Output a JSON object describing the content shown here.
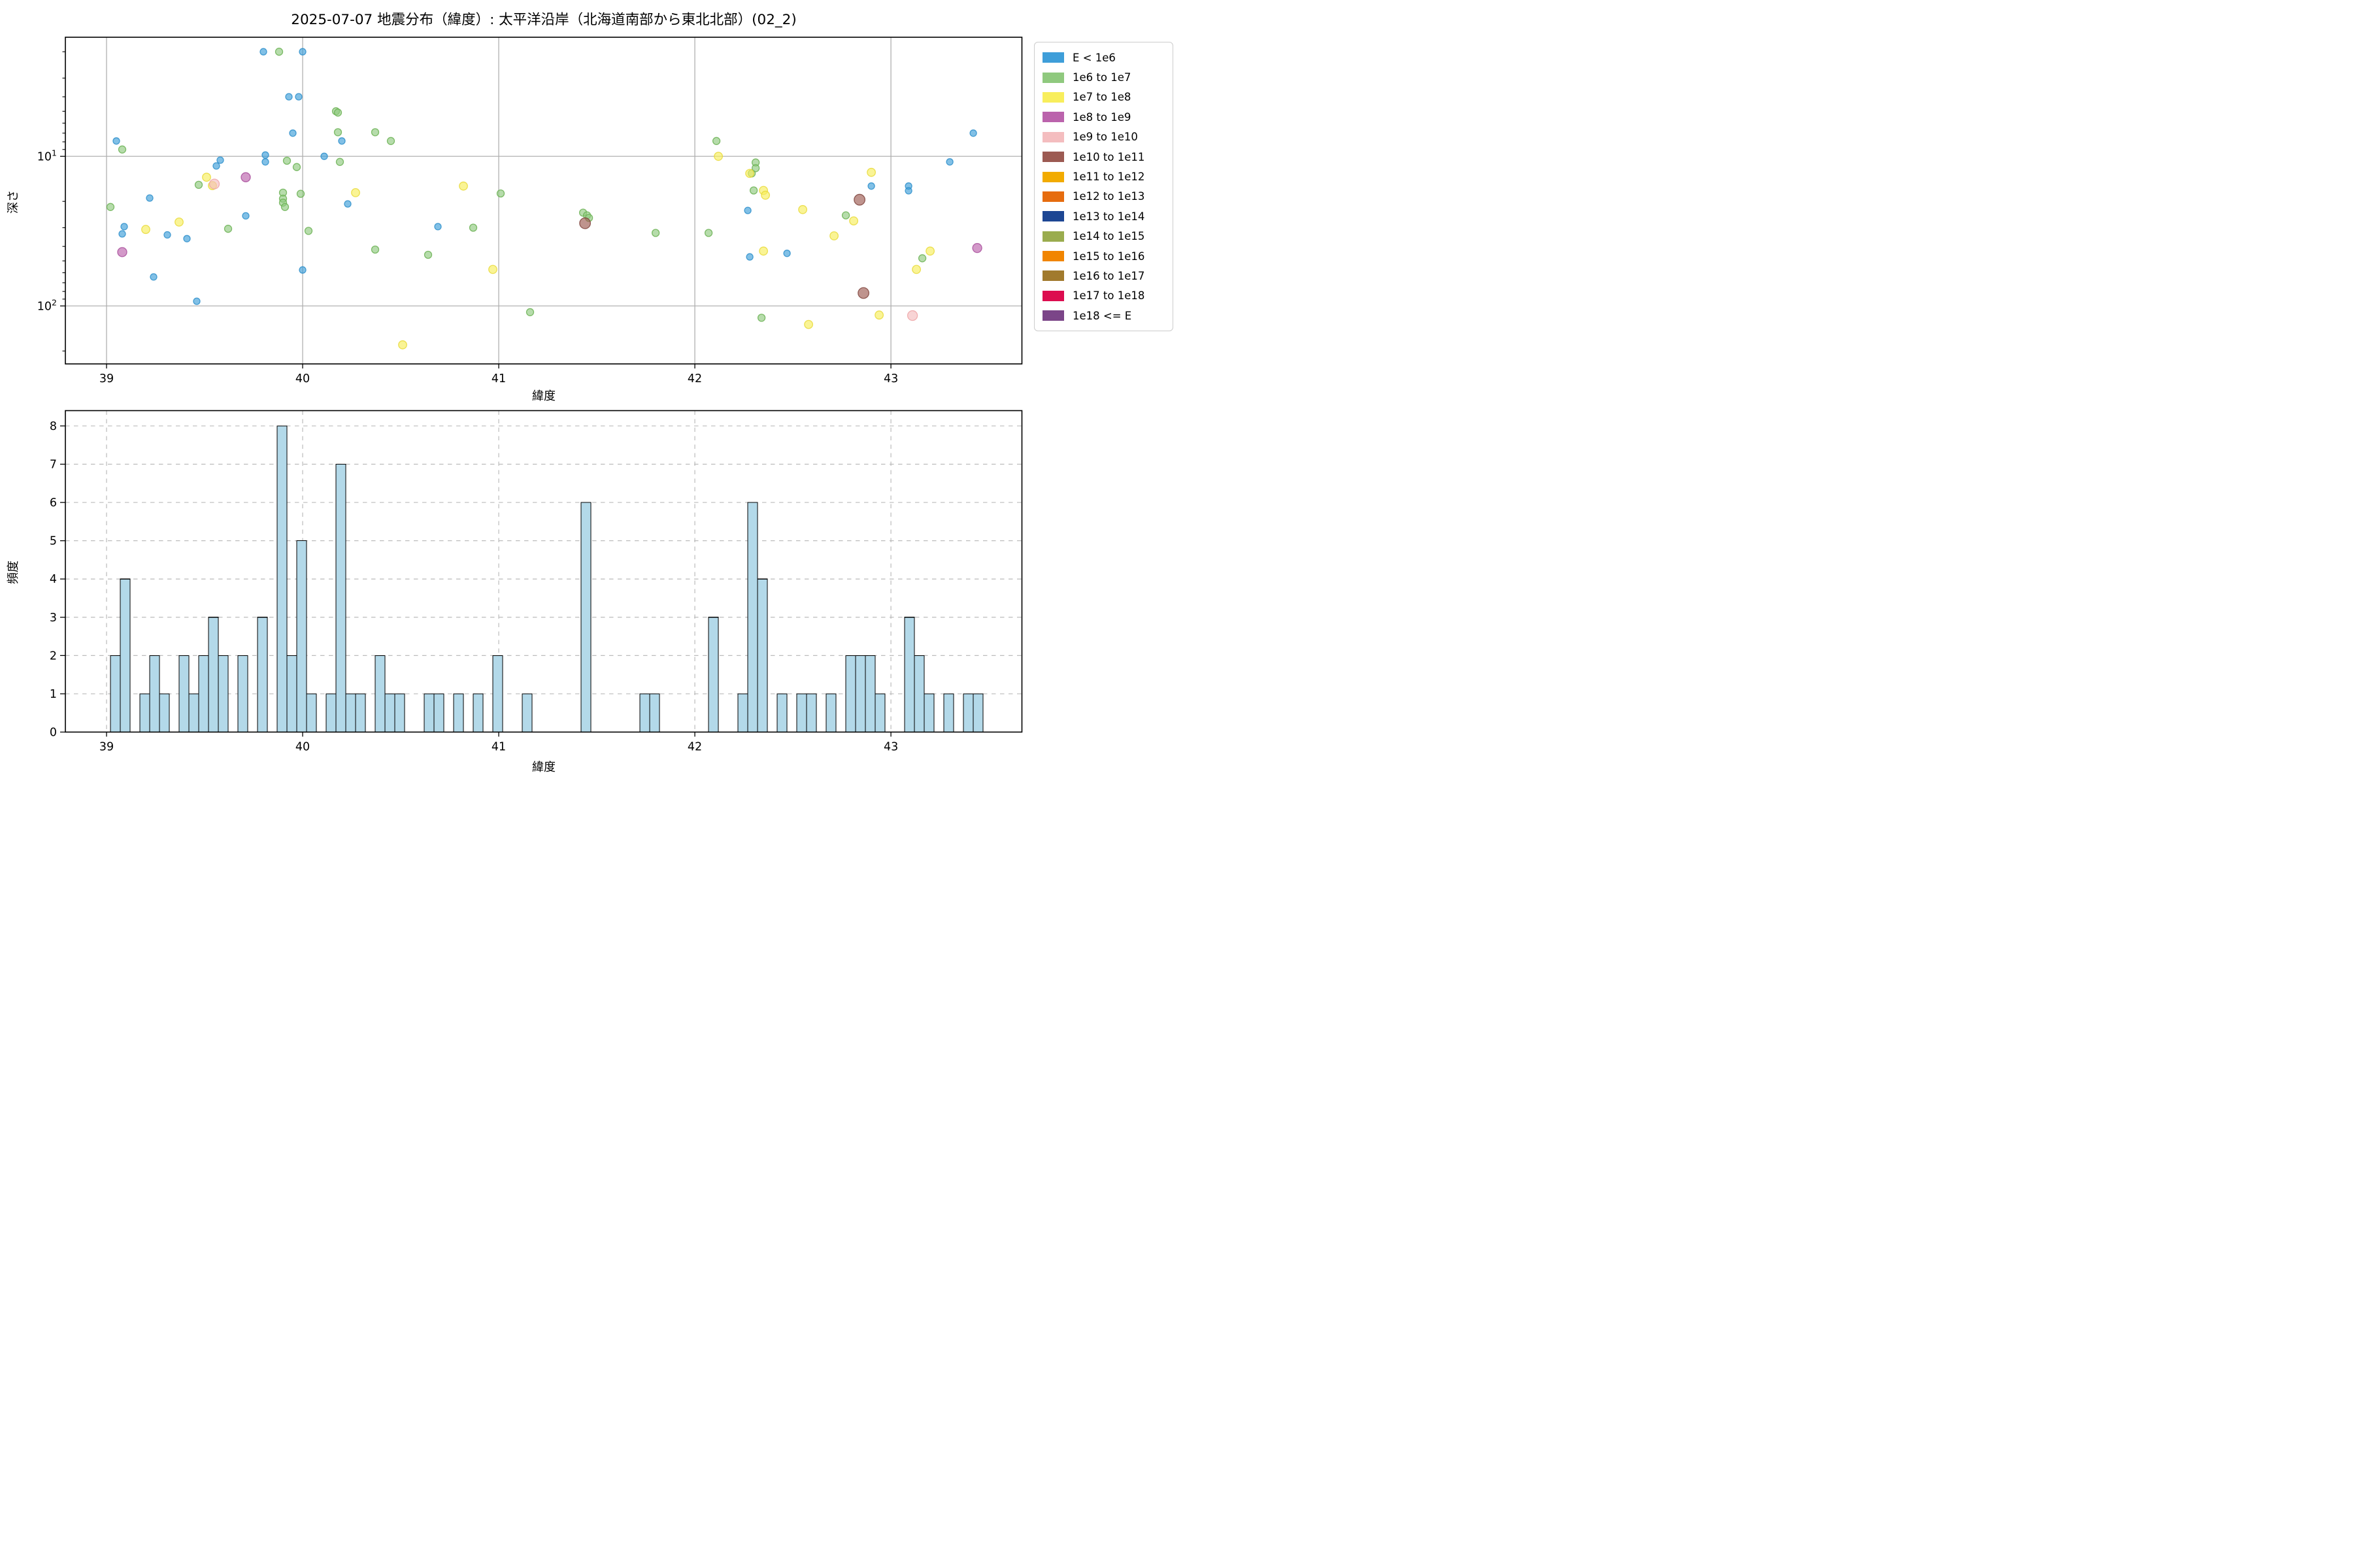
{
  "chart_data": [
    {
      "type": "scatter",
      "title": "2025-07-07 地震分布（緯度）: 太平洋沿岸（北海道南部から東北北部）(02_2)",
      "xlabel": "緯度",
      "ylabel": "深さ",
      "x_range": [
        38.79,
        43.668
      ],
      "x_ticks": [
        39,
        40,
        41,
        42,
        43
      ],
      "y_scale": "log",
      "y_inverted": true,
      "y_range_depth": [
        1.6,
        244
      ],
      "y_major_ticks": [
        10,
        100
      ],
      "y_minor_ticks": [
        2,
        3,
        4,
        5,
        6,
        7,
        8,
        9,
        20,
        30,
        40,
        50,
        60,
        70,
        80,
        90,
        200
      ],
      "grid": "solid",
      "grid_color": "#b0b0b0",
      "series": [
        {
          "name": "E < 1e6",
          "color": "#3E9ED9",
          "edge": "#2E8FCB",
          "size": 10,
          "points": [
            [
              39.05,
              7.9
            ],
            [
              39.08,
              33
            ],
            [
              39.09,
              29.5
            ],
            [
              39.22,
              19
            ],
            [
              39.24,
              64
            ],
            [
              39.31,
              33.5
            ],
            [
              39.41,
              35.5
            ],
            [
              39.46,
              93
            ],
            [
              39.56,
              11.6
            ],
            [
              39.58,
              10.6
            ],
            [
              39.71,
              25
            ],
            [
              39.8,
              2.0
            ],
            [
              39.81,
              9.8
            ],
            [
              39.81,
              10.9
            ],
            [
              39.93,
              4.0
            ],
            [
              39.95,
              7.0
            ],
            [
              39.98,
              4.0
            ],
            [
              40.0,
              2.0
            ],
            [
              40.0,
              57.5
            ],
            [
              40.11,
              10.0
            ],
            [
              40.2,
              7.9
            ],
            [
              40.23,
              20.8
            ],
            [
              40.69,
              29.5
            ],
            [
              42.27,
              23.0
            ],
            [
              42.28,
              47
            ],
            [
              42.47,
              44.5
            ],
            [
              42.9,
              15.8
            ],
            [
              43.09,
              15.8
            ],
            [
              43.09,
              17.0
            ],
            [
              43.3,
              10.9
            ],
            [
              43.42,
              7.0
            ]
          ]
        },
        {
          "name": "1e6 to 1e7",
          "color": "#8FC97E",
          "edge": "#6BB254",
          "size": 11,
          "points": [
            [
              39.02,
              21.8
            ],
            [
              39.08,
              9.0
            ],
            [
              39.47,
              15.5
            ],
            [
              39.62,
              30.5
            ],
            [
              39.88,
              2.0
            ],
            [
              39.9,
              17.5
            ],
            [
              39.9,
              19.2
            ],
            [
              39.9,
              20.4
            ],
            [
              39.91,
              21.8
            ],
            [
              39.92,
              10.7
            ],
            [
              39.97,
              11.8
            ],
            [
              39.99,
              17.8
            ],
            [
              40.03,
              31.5
            ],
            [
              40.17,
              5.0
            ],
            [
              40.18,
              5.1
            ],
            [
              40.18,
              6.9
            ],
            [
              40.19,
              10.9
            ],
            [
              40.37,
              6.9
            ],
            [
              40.37,
              42
            ],
            [
              40.45,
              7.9
            ],
            [
              40.64,
              45.5
            ],
            [
              40.87,
              30
            ],
            [
              41.01,
              17.7
            ],
            [
              41.16,
              110
            ],
            [
              41.43,
              23.8
            ],
            [
              41.45,
              24.8
            ],
            [
              41.46,
              25.8
            ],
            [
              41.8,
              32.5
            ],
            [
              42.07,
              32.5
            ],
            [
              42.11,
              7.9
            ],
            [
              42.29,
              13.0
            ],
            [
              42.3,
              16.9
            ],
            [
              42.31,
              11.0
            ],
            [
              42.31,
              12.0
            ],
            [
              42.34,
              120
            ],
            [
              42.77,
              24.8
            ],
            [
              43.16,
              48
            ]
          ]
        },
        {
          "name": "1e7 to 1e8",
          "color": "#F8EE5C",
          "edge": "#E8D93A",
          "size": 12.5,
          "points": [
            [
              39.2,
              30.8
            ],
            [
              39.37,
              27.5
            ],
            [
              39.51,
              13.8
            ],
            [
              39.54,
              15.7
            ],
            [
              40.27,
              17.5
            ],
            [
              40.51,
              182
            ],
            [
              40.82,
              15.8
            ],
            [
              40.97,
              57
            ],
            [
              42.12,
              10.0
            ],
            [
              42.28,
              13.0
            ],
            [
              42.35,
              16.9
            ],
            [
              42.36,
              18.2
            ],
            [
              42.35,
              43
            ],
            [
              42.55,
              22.7
            ],
            [
              42.58,
              133
            ],
            [
              42.71,
              34
            ],
            [
              42.81,
              27
            ],
            [
              42.9,
              12.8
            ],
            [
              42.94,
              115
            ],
            [
              43.13,
              57
            ],
            [
              43.2,
              43
            ]
          ]
        },
        {
          "name": "1e8 to 1e9",
          "color": "#BB63AC",
          "edge": "#A84D9B",
          "size": 14,
          "points": [
            [
              39.08,
              43.7
            ],
            [
              39.71,
              13.8
            ],
            [
              43.44,
              41
            ]
          ]
        },
        {
          "name": "1e9 to 1e10",
          "color": "#F4BDBF",
          "edge": "#EDA3A6",
          "size": 15,
          "points": [
            [
              39.55,
              15.3
            ],
            [
              43.11,
              116
            ]
          ]
        },
        {
          "name": "1e10 to 1e11",
          "color": "#9C5A52",
          "edge": "#7F443D",
          "size": 16.5,
          "points": [
            [
              41.44,
              28
            ],
            [
              42.84,
              19.5
            ],
            [
              42.86,
              82
            ]
          ]
        },
        {
          "name": "1e11 to 1e12",
          "color": "#F2AB00",
          "edge": "#D99900",
          "size": 13,
          "points": []
        },
        {
          "name": "1e12 to 1e13",
          "color": "#E66C0F",
          "edge": "#C85A08",
          "size": 13,
          "points": []
        },
        {
          "name": "1e13 to 1e14",
          "color": "#1D4693",
          "edge": "#14357A",
          "size": 13,
          "points": []
        },
        {
          "name": "1e14 to 1e15",
          "color": "#9AAC4E",
          "edge": "#80913C",
          "size": 13,
          "points": []
        },
        {
          "name": "1e15 to 1e16",
          "color": "#F18500",
          "edge": "#D37300",
          "size": 13,
          "points": []
        },
        {
          "name": "1e16 to 1e17",
          "color": "#A17A2D",
          "edge": "#876422",
          "size": 13,
          "points": []
        },
        {
          "name": "1e17 to 1e18",
          "color": "#DC0D4F",
          "edge": "#B80A41",
          "size": 13,
          "points": []
        },
        {
          "name": "1e18 <= E",
          "color": "#7B4588",
          "edge": "#643471",
          "size": 13,
          "points": []
        }
      ]
    },
    {
      "type": "bar",
      "xlabel": "緯度",
      "ylabel": "頻度",
      "x_range": [
        38.79,
        43.668
      ],
      "x_ticks": [
        39,
        40,
        41,
        42,
        43
      ],
      "y_ticks": [
        0,
        1,
        2,
        3,
        4,
        5,
        6,
        7,
        8
      ],
      "y_max": 8.4,
      "grid": "dashed",
      "grid_color": "#bbbbbb",
      "bar_color": "#B3D9E9",
      "bar_edge": "#000000",
      "bin_width": 0.05,
      "bins": [
        {
          "left": 39.02,
          "count": 2
        },
        {
          "left": 39.07,
          "count": 4
        },
        {
          "left": 39.17,
          "count": 1
        },
        {
          "left": 39.22,
          "count": 2
        },
        {
          "left": 39.27,
          "count": 1
        },
        {
          "left": 39.37,
          "count": 2
        },
        {
          "left": 39.42,
          "count": 1
        },
        {
          "left": 39.47,
          "count": 2
        },
        {
          "left": 39.52,
          "count": 3
        },
        {
          "left": 39.57,
          "count": 2
        },
        {
          "left": 39.67,
          "count": 2
        },
        {
          "left": 39.77,
          "count": 3
        },
        {
          "left": 39.87,
          "count": 8
        },
        {
          "left": 39.92,
          "count": 2
        },
        {
          "left": 39.97,
          "count": 5
        },
        {
          "left": 40.02,
          "count": 1
        },
        {
          "left": 40.12,
          "count": 1
        },
        {
          "left": 40.17,
          "count": 7
        },
        {
          "left": 40.22,
          "count": 1
        },
        {
          "left": 40.27,
          "count": 1
        },
        {
          "left": 40.37,
          "count": 2
        },
        {
          "left": 40.42,
          "count": 1
        },
        {
          "left": 40.47,
          "count": 1
        },
        {
          "left": 40.62,
          "count": 1
        },
        {
          "left": 40.67,
          "count": 1
        },
        {
          "left": 40.77,
          "count": 1
        },
        {
          "left": 40.87,
          "count": 1
        },
        {
          "left": 40.97,
          "count": 2
        },
        {
          "left": 41.12,
          "count": 1
        },
        {
          "left": 41.42,
          "count": 6
        },
        {
          "left": 41.72,
          "count": 1
        },
        {
          "left": 41.77,
          "count": 1
        },
        {
          "left": 42.07,
          "count": 3
        },
        {
          "left": 42.22,
          "count": 1
        },
        {
          "left": 42.27,
          "count": 6
        },
        {
          "left": 42.32,
          "count": 4
        },
        {
          "left": 42.42,
          "count": 1
        },
        {
          "left": 42.52,
          "count": 1
        },
        {
          "left": 42.57,
          "count": 1
        },
        {
          "left": 42.67,
          "count": 1
        },
        {
          "left": 42.77,
          "count": 2
        },
        {
          "left": 42.82,
          "count": 2
        },
        {
          "left": 42.87,
          "count": 2
        },
        {
          "left": 42.92,
          "count": 1
        },
        {
          "left": 43.07,
          "count": 3
        },
        {
          "left": 43.12,
          "count": 2
        },
        {
          "left": 43.17,
          "count": 1
        },
        {
          "left": 43.27,
          "count": 1
        },
        {
          "left": 43.37,
          "count": 1
        },
        {
          "left": 43.42,
          "count": 1
        }
      ]
    }
  ],
  "legend": {
    "items": [
      {
        "label": "E < 1e6",
        "color": "#3E9ED9"
      },
      {
        "label": "1e6 to 1e7",
        "color": "#8FC97E"
      },
      {
        "label": "1e7 to 1e8",
        "color": "#F8EE5C"
      },
      {
        "label": "1e8 to 1e9",
        "color": "#BB63AC"
      },
      {
        "label": "1e9 to 1e10",
        "color": "#F4BDBF"
      },
      {
        "label": "1e10 to 1e11",
        "color": "#9C5A52"
      },
      {
        "label": "1e11 to 1e12",
        "color": "#F2AB00"
      },
      {
        "label": "1e12 to 1e13",
        "color": "#E66C0F"
      },
      {
        "label": "1e13 to 1e14",
        "color": "#1D4693"
      },
      {
        "label": "1e14 to 1e15",
        "color": "#9AAC4E"
      },
      {
        "label": "1e15 to 1e16",
        "color": "#F18500"
      },
      {
        "label": "1e16 to 1e17",
        "color": "#A17A2D"
      },
      {
        "label": "1e17 to 1e18",
        "color": "#DC0D4F"
      },
      {
        "label": "1e18 <= E",
        "color": "#7B4588"
      }
    ]
  }
}
